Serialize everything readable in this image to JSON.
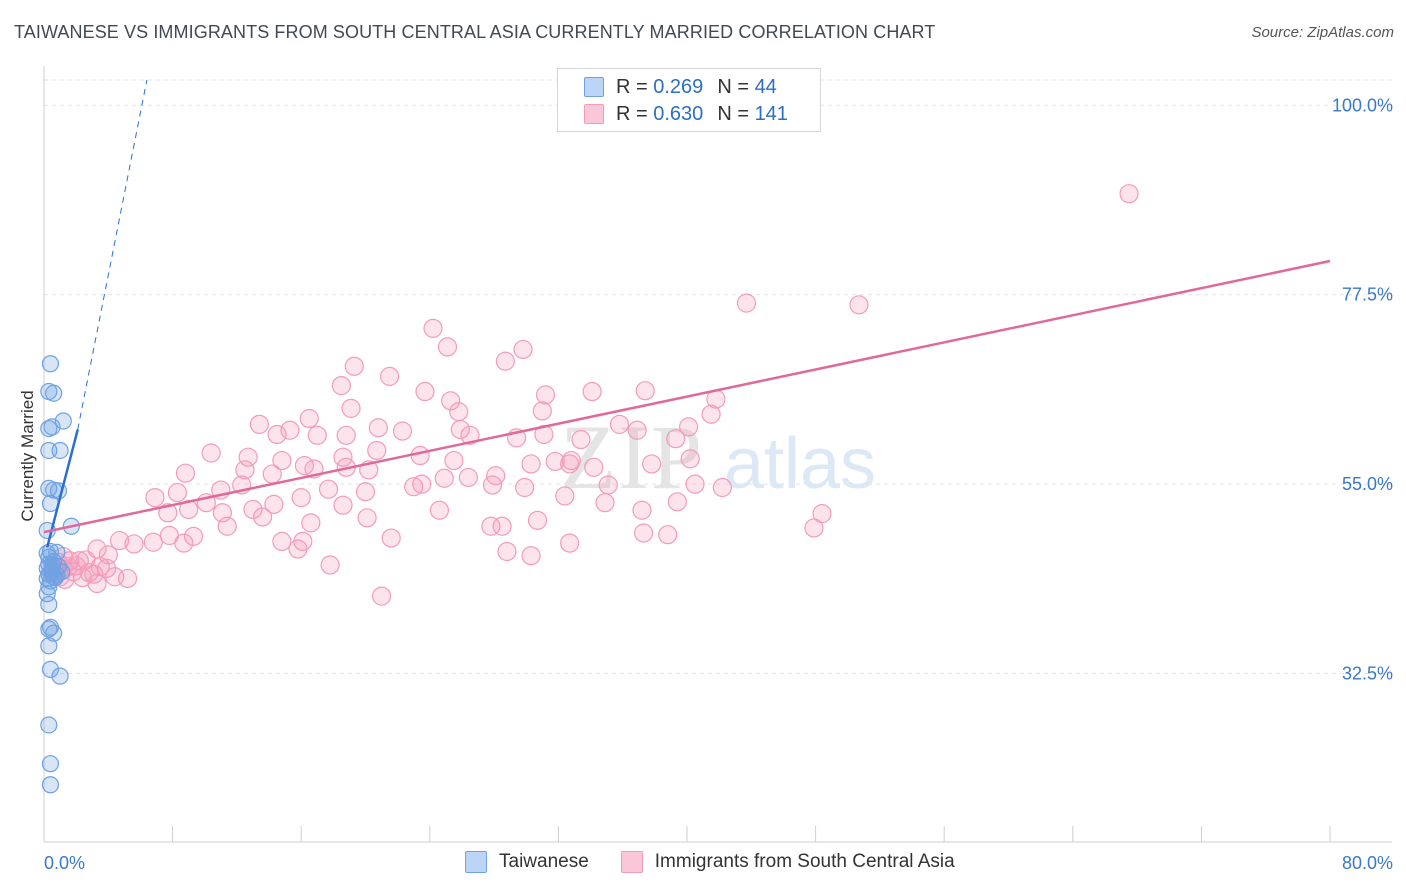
{
  "title": "TAIWANESE VS IMMIGRANTS FROM SOUTH CENTRAL ASIA CURRENTLY MARRIED CORRELATION CHART",
  "source": "Source: ZipAtlas.com",
  "watermark": {
    "zip": "ZIP",
    "atlas": "atlas"
  },
  "legend": {
    "r_label": "R =",
    "n_label": "N =",
    "rows": [
      {
        "name": "Taiwanese",
        "r": "0.269",
        "n": "44"
      },
      {
        "name": "Immigrants from South Central Asia",
        "r": "0.630",
        "n": "141"
      }
    ]
  },
  "chart_data": {
    "type": "scatter",
    "title": "TAIWANESE VS IMMIGRANTS FROM SOUTH CENTRAL ASIA CURRENTLY MARRIED CORRELATION CHART",
    "xlabel": "",
    "ylabel": "Currently Married",
    "xlim": [
      0,
      80
    ],
    "ylim": [
      12.5,
      103
    ],
    "x_tick_labels": [
      "0.0%",
      "80.0%"
    ],
    "y_ticks": [
      32.5,
      55.0,
      77.5,
      100.0
    ],
    "y_tick_labels": [
      "32.5%",
      "55.0%",
      "77.5%",
      "100.0%"
    ],
    "grid": true,
    "colors": {
      "taiwanese": "#6ea2e4",
      "taiwanese_line": "#2a6fd1",
      "immigrants": "#f49bb9",
      "immigrants_line": "#e0699b",
      "axis_text": "#3a78c9"
    },
    "series": [
      {
        "name": "Taiwanese",
        "color": "#6ea2e4",
        "points": [
          [
            0.4,
            69.3
          ],
          [
            0.6,
            65.8
          ],
          [
            0.3,
            66.0
          ],
          [
            1.2,
            62.5
          ],
          [
            0.5,
            61.8
          ],
          [
            0.3,
            61.6
          ],
          [
            1.0,
            59.0
          ],
          [
            0.3,
            59.0
          ],
          [
            0.6,
            54.3
          ],
          [
            0.3,
            54.5
          ],
          [
            0.9,
            54.2
          ],
          [
            0.4,
            52.7
          ],
          [
            1.7,
            50.0
          ],
          [
            0.2,
            49.5
          ],
          [
            0.4,
            47.0
          ],
          [
            0.8,
            46.9
          ],
          [
            0.3,
            46.3
          ],
          [
            0.6,
            45.8
          ],
          [
            0.3,
            45.5
          ],
          [
            0.2,
            45.0
          ],
          [
            0.5,
            44.9
          ],
          [
            0.9,
            45.2
          ],
          [
            1.1,
            44.6
          ],
          [
            0.3,
            44.3
          ],
          [
            0.6,
            44.0
          ],
          [
            0.2,
            43.8
          ],
          [
            0.4,
            43.5
          ],
          [
            0.8,
            44.2
          ],
          [
            0.3,
            42.8
          ],
          [
            0.2,
            42.0
          ],
          [
            0.3,
            40.7
          ],
          [
            0.4,
            38.0
          ],
          [
            0.3,
            37.8
          ],
          [
            0.6,
            37.3
          ],
          [
            0.3,
            35.8
          ],
          [
            0.4,
            33.0
          ],
          [
            1.0,
            32.2
          ],
          [
            0.3,
            26.4
          ],
          [
            0.4,
            21.8
          ],
          [
            0.4,
            19.3
          ],
          [
            0.5,
            44.6
          ],
          [
            0.7,
            43.9
          ],
          [
            0.2,
            46.8
          ],
          [
            0.5,
            45.4
          ]
        ]
      },
      {
        "name": "Immigrants from South Central Asia",
        "color": "#f49bb9",
        "points": [
          [
            67.5,
            89.5
          ],
          [
            43.7,
            76.5
          ],
          [
            50.7,
            76.3
          ],
          [
            24.2,
            73.5
          ],
          [
            25.1,
            71.3
          ],
          [
            29.8,
            71.0
          ],
          [
            28.7,
            69.6
          ],
          [
            19.3,
            69.0
          ],
          [
            21.5,
            67.8
          ],
          [
            18.5,
            66.7
          ],
          [
            23.7,
            66.0
          ],
          [
            34.1,
            66.0
          ],
          [
            31.2,
            65.6
          ],
          [
            37.4,
            66.1
          ],
          [
            25.3,
            64.9
          ],
          [
            41.8,
            65.1
          ],
          [
            19.1,
            64.0
          ],
          [
            25.8,
            63.6
          ],
          [
            31.0,
            63.7
          ],
          [
            41.5,
            63.3
          ],
          [
            16.5,
            62.8
          ],
          [
            13.4,
            62.1
          ],
          [
            15.3,
            61.4
          ],
          [
            20.8,
            61.7
          ],
          [
            35.8,
            62.1
          ],
          [
            36.9,
            61.4
          ],
          [
            25.9,
            61.5
          ],
          [
            22.3,
            61.3
          ],
          [
            14.5,
            60.9
          ],
          [
            17.0,
            60.8
          ],
          [
            26.5,
            60.8
          ],
          [
            31.1,
            60.9
          ],
          [
            18.8,
            60.8
          ],
          [
            29.4,
            60.5
          ],
          [
            39.3,
            60.4
          ],
          [
            33.4,
            60.3
          ],
          [
            10.4,
            58.7
          ],
          [
            12.7,
            58.2
          ],
          [
            14.8,
            57.8
          ],
          [
            16.2,
            57.2
          ],
          [
            18.6,
            58.2
          ],
          [
            20.7,
            59.0
          ],
          [
            23.4,
            58.4
          ],
          [
            25.5,
            57.8
          ],
          [
            31.8,
            57.7
          ],
          [
            32.8,
            57.8
          ],
          [
            8.8,
            56.3
          ],
          [
            12.5,
            56.7
          ],
          [
            14.2,
            56.2
          ],
          [
            16.8,
            56.8
          ],
          [
            18.8,
            57.0
          ],
          [
            20.2,
            56.7
          ],
          [
            23.5,
            55.0
          ],
          [
            26.4,
            55.8
          ],
          [
            28.1,
            56.0
          ],
          [
            30.3,
            57.4
          ],
          [
            27.9,
            54.9
          ],
          [
            32.7,
            57.4
          ],
          [
            34.2,
            57.0
          ],
          [
            35.1,
            54.9
          ],
          [
            37.8,
            57.4
          ],
          [
            40.2,
            58.0
          ],
          [
            40.5,
            55.0
          ],
          [
            42.2,
            54.6
          ],
          [
            11.0,
            54.3
          ],
          [
            12.3,
            54.9
          ],
          [
            6.9,
            53.4
          ],
          [
            8.3,
            54.0
          ],
          [
            10.1,
            52.8
          ],
          [
            13.0,
            52.0
          ],
          [
            14.3,
            52.6
          ],
          [
            16.0,
            53.4
          ],
          [
            17.7,
            54.4
          ],
          [
            20.0,
            54.1
          ],
          [
            23.0,
            54.7
          ],
          [
            24.9,
            55.7
          ],
          [
            29.9,
            54.6
          ],
          [
            32.4,
            53.6
          ],
          [
            34.9,
            52.8
          ],
          [
            37.2,
            51.9
          ],
          [
            39.4,
            52.9
          ],
          [
            7.7,
            51.6
          ],
          [
            9.0,
            52.0
          ],
          [
            11.1,
            51.6
          ],
          [
            13.6,
            51.1
          ],
          [
            11.4,
            50.0
          ],
          [
            16.6,
            50.4
          ],
          [
            18.6,
            52.5
          ],
          [
            20.1,
            51.0
          ],
          [
            24.6,
            51.9
          ],
          [
            27.8,
            50.0
          ],
          [
            28.5,
            50.0
          ],
          [
            30.7,
            50.7
          ],
          [
            37.3,
            49.2
          ],
          [
            38.8,
            49.0
          ],
          [
            7.8,
            48.9
          ],
          [
            9.3,
            48.8
          ],
          [
            5.6,
            47.9
          ],
          [
            6.8,
            48.1
          ],
          [
            8.7,
            48.0
          ],
          [
            14.8,
            48.2
          ],
          [
            16.1,
            48.2
          ],
          [
            21.6,
            48.6
          ],
          [
            28.8,
            47.0
          ],
          [
            32.7,
            48.0
          ],
          [
            15.8,
            47.3
          ],
          [
            30.3,
            46.5
          ],
          [
            4.7,
            48.3
          ],
          [
            3.3,
            47.3
          ],
          [
            4.0,
            46.6
          ],
          [
            2.6,
            46.0
          ],
          [
            3.5,
            45.2
          ],
          [
            2.2,
            45.9
          ],
          [
            3.9,
            45.0
          ],
          [
            1.5,
            45.2
          ],
          [
            1.8,
            44.6
          ],
          [
            2.8,
            44.5
          ],
          [
            4.4,
            44.0
          ],
          [
            5.2,
            43.8
          ],
          [
            3.3,
            43.2
          ],
          [
            1.2,
            44.9
          ],
          [
            0.9,
            45.7
          ],
          [
            0.6,
            44.9
          ],
          [
            2.4,
            43.9
          ],
          [
            1.6,
            45.9
          ],
          [
            1.0,
            44.0
          ],
          [
            0.8,
            45.2
          ],
          [
            3.1,
            44.3
          ],
          [
            0.5,
            44.5
          ],
          [
            1.3,
            43.7
          ],
          [
            2.0,
            45.3
          ],
          [
            1.2,
            46.4
          ],
          [
            17.8,
            45.4
          ],
          [
            21.0,
            41.7
          ],
          [
            40.1,
            61.8
          ],
          [
            48.4,
            51.5
          ],
          [
            47.9,
            49.8
          ]
        ]
      }
    ],
    "trendlines": [
      {
        "series": "Taiwanese",
        "solid": [
          [
            0.2,
            47.5
          ],
          [
            2.1,
            61.5
          ]
        ],
        "dashed_to": [
          6.4,
          103.0
        ]
      },
      {
        "series": "Immigrants from South Central Asia",
        "from": [
          0.0,
          49.3
        ],
        "to": [
          80.0,
          81.5
        ]
      }
    ]
  }
}
